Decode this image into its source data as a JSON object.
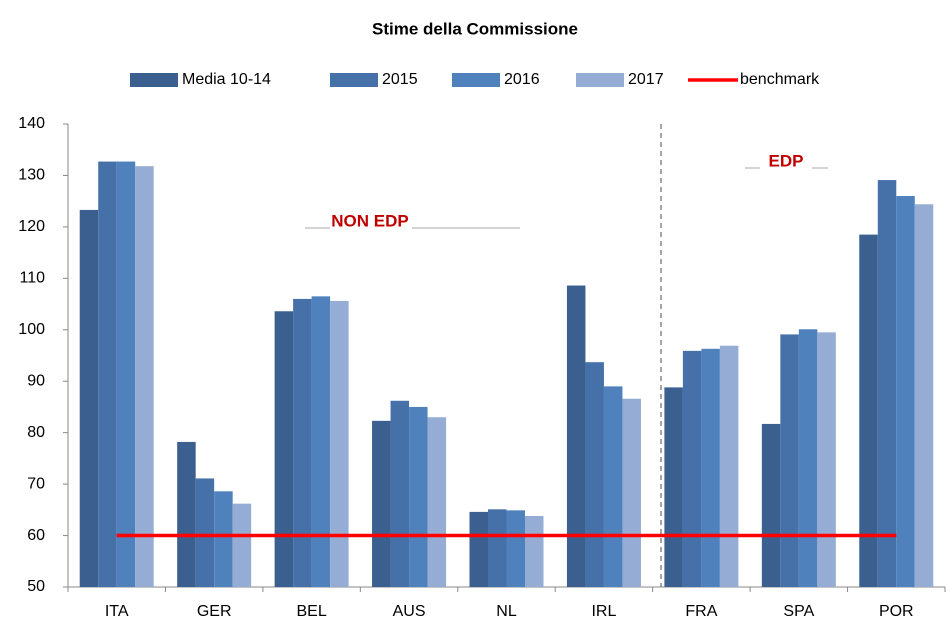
{
  "chart_data": {
    "type": "bar",
    "title": "Stime della Commissione",
    "categories": [
      "ITA",
      "GER",
      "BEL",
      "AUS",
      "NL",
      "IRL",
      "FRA",
      "SPA",
      "POR"
    ],
    "series": [
      {
        "name": "Media 10-14",
        "color": "#3b5f8e",
        "values": [
          123.3,
          78.2,
          103.6,
          82.3,
          64.6,
          108.6,
          88.8,
          81.7,
          118.5
        ]
      },
      {
        "name": "2015",
        "color": "#4670a8",
        "values": [
          132.7,
          71.1,
          106.0,
          86.2,
          65.1,
          93.7,
          95.9,
          99.1,
          129.1
        ]
      },
      {
        "name": "2016",
        "color": "#4f81bd",
        "values": [
          132.7,
          68.6,
          106.5,
          85.0,
          64.9,
          89.0,
          96.3,
          100.1,
          126.0
        ]
      },
      {
        "name": "2017",
        "color": "#95add5",
        "values": [
          131.8,
          66.2,
          105.6,
          83.0,
          63.8,
          86.6,
          96.9,
          99.5,
          124.4
        ]
      },
      {
        "name": "benchmark",
        "color": "#ff0000",
        "type": "line",
        "values": [
          60,
          60,
          60,
          60,
          60,
          60,
          60,
          60,
          60
        ]
      }
    ],
    "annotations": [
      {
        "text": "NON EDP",
        "color": "#c00000"
      },
      {
        "text": "EDP",
        "color": "#c00000"
      }
    ],
    "ylim": [
      50,
      140
    ],
    "yticks": [
      50,
      60,
      70,
      80,
      90,
      100,
      110,
      120,
      130,
      140
    ],
    "legend": "top"
  }
}
